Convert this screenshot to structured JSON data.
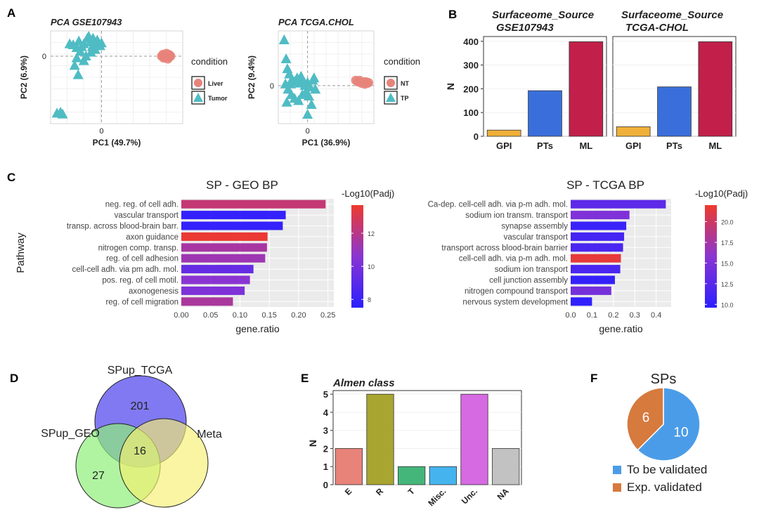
{
  "panel_labels": [
    "A",
    "B",
    "C",
    "D",
    "E",
    "F"
  ],
  "chart_data": [
    {
      "id": "pca_geo",
      "type": "scatter",
      "title": "PCA GSE107943",
      "xlabel": "PC1 (49.7%)",
      "ylabel": "PC2 (6.9%)",
      "xticks": [
        "0"
      ],
      "yticks": [
        "0"
      ],
      "legend_title": "condition",
      "legend_placement": "right",
      "series": [
        {
          "name": "Liver",
          "marker": "circle",
          "color": "#e8837a",
          "points": [
            [
              0.85,
              0.0
            ],
            [
              0.87,
              0.02
            ],
            [
              0.88,
              -0.02
            ],
            [
              0.9,
              0.01
            ],
            [
              0.91,
              -0.01
            ],
            [
              0.92,
              0.03
            ],
            [
              0.93,
              0.0
            ],
            [
              0.94,
              -0.03
            ],
            [
              0.95,
              0.02
            ],
            [
              0.96,
              -0.01
            ],
            [
              0.97,
              0.01
            ],
            [
              0.98,
              0.0
            ]
          ]
        },
        {
          "name": "Tumor",
          "marker": "triangle",
          "color": "#4fbcc4",
          "points": [
            [
              -0.45,
              0.13
            ],
            [
              -0.4,
              0.12
            ],
            [
              -0.32,
              0.16
            ],
            [
              -0.28,
              0.1
            ],
            [
              -0.25,
              0.13
            ],
            [
              -0.2,
              0.19
            ],
            [
              -0.16,
              0.15
            ],
            [
              -0.13,
              0.1
            ],
            [
              -0.1,
              0.13
            ],
            [
              -0.06,
              0.17
            ],
            [
              -0.02,
              0.11
            ],
            [
              0.0,
              0.14
            ],
            [
              -0.3,
              0.05
            ],
            [
              -0.22,
              0.0
            ],
            [
              -0.35,
              -0.02
            ],
            [
              -0.38,
              -0.1
            ],
            [
              -0.25,
              -0.05
            ],
            [
              -0.15,
              0.04
            ],
            [
              -0.09,
              0.07
            ],
            [
              -0.18,
              0.21
            ],
            [
              -0.33,
              -0.2
            ],
            [
              -0.55,
              -0.62
            ],
            [
              -0.58,
              -0.6
            ],
            [
              -0.63,
              -0.61
            ],
            [
              -0.35,
              0.09
            ],
            [
              -0.12,
              0.19
            ]
          ]
        }
      ]
    },
    {
      "id": "pca_tcga",
      "type": "scatter",
      "title": "PCA TCGA.CHOL",
      "xlabel": "PC1 (36.9%)",
      "ylabel": "PC2 (9.4%)",
      "xticks": [
        "0"
      ],
      "yticks": [
        "0"
      ],
      "legend_title": "condition",
      "legend_placement": "right",
      "series": [
        {
          "name": "NT",
          "marker": "circle",
          "color": "#e8837a",
          "points": [
            [
              0.74,
              0.07
            ],
            [
              0.77,
              0.05
            ],
            [
              0.8,
              0.07
            ],
            [
              0.83,
              0.03
            ],
            [
              0.86,
              0.05
            ],
            [
              0.88,
              0.02
            ],
            [
              0.9,
              0.05
            ],
            [
              0.92,
              0.03
            ],
            [
              0.94,
              0.04
            ]
          ]
        },
        {
          "name": "TP",
          "marker": "triangle",
          "color": "#4fbcc4",
          "points": [
            [
              -0.36,
              0.6
            ],
            [
              -0.33,
              0.35
            ],
            [
              -0.31,
              0.22
            ],
            [
              -0.28,
              0.15
            ],
            [
              -0.24,
              0.08
            ],
            [
              -0.2,
              0.05
            ],
            [
              -0.16,
              0.1
            ],
            [
              -0.12,
              0.03
            ],
            [
              -0.08,
              0.06
            ],
            [
              -0.04,
              0.0
            ],
            [
              0.0,
              0.04
            ],
            [
              0.04,
              -0.02
            ],
            [
              0.08,
              0.07
            ],
            [
              0.12,
              -0.05
            ],
            [
              -0.34,
              0.02
            ],
            [
              -0.3,
              -0.05
            ],
            [
              -0.25,
              -0.12
            ],
            [
              -0.2,
              -0.17
            ],
            [
              -0.14,
              -0.2
            ],
            [
              -0.08,
              -0.12
            ],
            [
              -0.02,
              -0.08
            ],
            [
              0.02,
              -0.14
            ],
            [
              0.06,
              -0.25
            ],
            [
              0.0,
              -0.38
            ],
            [
              -0.32,
              -0.22
            ],
            [
              -0.26,
              0.02
            ],
            [
              -0.1,
              0.12
            ],
            [
              0.1,
              0.1
            ]
          ]
        }
      ]
    },
    {
      "id": "surfaceome_geo",
      "type": "bar",
      "title": "Surfaceome_Source GSE107943",
      "ylabel": "N",
      "categories": [
        "GPI",
        "PTs",
        "ML"
      ],
      "values": [
        26,
        192,
        398
      ],
      "colors": [
        "#f0b03a",
        "#3a6fdb",
        "#c2204a"
      ],
      "ylim": [
        0,
        420
      ],
      "yticks": [
        0,
        100,
        200,
        300,
        400
      ]
    },
    {
      "id": "surfaceome_tcga",
      "type": "bar",
      "title": "Surfaceome_Source TCGA-CHOL",
      "ylabel": "N",
      "categories": [
        "GPI",
        "PTs",
        "ML"
      ],
      "values": [
        40,
        208,
        398
      ],
      "colors": [
        "#f0b03a",
        "#3a6fdb",
        "#c2204a"
      ],
      "ylim": [
        0,
        420
      ],
      "yticks": [
        0,
        100,
        200,
        300,
        400
      ]
    },
    {
      "id": "sp_geo_bp",
      "type": "bar",
      "orientation": "horizontal",
      "title": "SP - GEO BP",
      "xlabel": "gene.ratio",
      "ylabel": "Pathway",
      "xlim": [
        0,
        0.26
      ],
      "xticks": [
        "0.00",
        "0.05",
        "0.10",
        "0.15",
        "0.20",
        "0.25"
      ],
      "categories": [
        "neg. reg. of cell adh.",
        "vascular transport",
        "transp. across blood-brain barr.",
        "axon guidance",
        "nitrogen comp. transp.",
        "reg. of cell adhesion",
        "cell-cell adh. via pm adh. mol.",
        "pos. reg. of cell motil.",
        "axonogenesis",
        "reg. of cell migration"
      ],
      "values": [
        0.246,
        0.178,
        0.173,
        0.147,
        0.146,
        0.143,
        0.123,
        0.117,
        0.108,
        0.088
      ],
      "color_values": [
        12.4,
        7.8,
        7.8,
        13.6,
        11.5,
        11.2,
        9.4,
        10.6,
        10.2,
        11.6
      ],
      "colorbar": {
        "title": "-Log10(Padj)",
        "min": 7.5,
        "max": 13.7,
        "ticks": [
          8,
          10,
          12
        ],
        "low_color": "#2b1fff",
        "mid_color": "#8a35d2",
        "high_color": "#ee3a2e"
      }
    },
    {
      "id": "sp_tcga_bp",
      "type": "bar",
      "orientation": "horizontal",
      "title": "SP - TCGA BP",
      "xlabel": "gene.ratio",
      "ylabel": "",
      "xlim": [
        0,
        0.47
      ],
      "xticks": [
        "0.0",
        "0.1",
        "0.2",
        "0.3",
        "0.4"
      ],
      "categories": [
        "Ca-dep. cell-cell adh. via p-m adh. mol.",
        "sodium ion transm. transport",
        "synapse assembly",
        "vascular transport",
        "transport across blood-brain barrier",
        "cell-cell adh. via p-m adh. mol.",
        "sodium ion transport",
        "cell junction assembly",
        "nitrogen compound transport",
        "nervous system development"
      ],
      "values": [
        0.445,
        0.275,
        0.26,
        0.25,
        0.245,
        0.235,
        0.232,
        0.207,
        0.19,
        0.1
      ],
      "color_values": [
        12.8,
        15.0,
        10.6,
        11.2,
        11.6,
        21.5,
        11.6,
        10.2,
        14.5,
        10.0
      ],
      "colorbar": {
        "title": "-Log10(Padj)",
        "min": 9.6,
        "max": 22,
        "ticks": [
          10.0,
          12.5,
          15.0,
          17.5,
          20.0
        ],
        "low_color": "#2b1fff",
        "mid_color": "#8a35d2",
        "high_color": "#ee3a2e"
      }
    },
    {
      "id": "venn",
      "type": "venn",
      "sets": [
        {
          "name": "SPup_TCGA",
          "color": "#6a62ee"
        },
        {
          "name": "SPup_GEO",
          "color": "#8ef07a"
        },
        {
          "name": "Meta",
          "color": "#f6f070"
        }
      ],
      "region_values": {
        "tcga_only": "201",
        "geo_only": "27",
        "all_three": "16"
      }
    },
    {
      "id": "almen",
      "type": "bar",
      "title": "Almen class",
      "ylabel": "N",
      "categories": [
        "E",
        "R",
        "T",
        "Misc.",
        "Unc.",
        "NA"
      ],
      "values": [
        2,
        5,
        1,
        1,
        5,
        2
      ],
      "colors": [
        "#e8837a",
        "#a8a530",
        "#45b67a",
        "#45b4ee",
        "#d66ae2",
        "#c2c2c2"
      ],
      "ylim": [
        0,
        5.2
      ],
      "yticks": [
        0,
        1,
        2,
        3,
        4,
        5
      ]
    },
    {
      "id": "sps_pie",
      "type": "pie",
      "title": "SPs",
      "slices": [
        {
          "label": "To be validated",
          "value": 10,
          "color": "#4b9ce8"
        },
        {
          "label": "Exp. validated",
          "value": 6,
          "color": "#d67a3e"
        }
      ]
    }
  ]
}
